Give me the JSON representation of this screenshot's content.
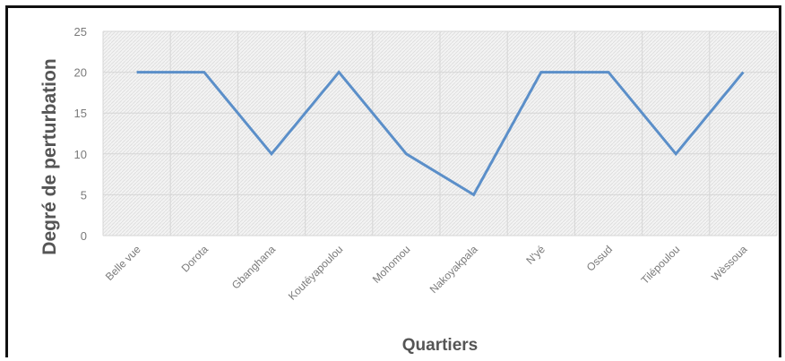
{
  "chart_data": {
    "type": "line",
    "categories": [
      "Belle vue",
      "Dorota",
      "Gbanghana",
      "Koutéyapoulou",
      "Mohomou",
      "Nakoyakpala",
      "N'yé",
      "Ossud",
      "Tilépoulou",
      "Wèssoua"
    ],
    "series": [
      {
        "values": [
          20,
          20,
          10,
          20,
          10,
          5,
          20,
          20,
          10,
          20
        ]
      }
    ],
    "title": "",
    "xlabel": "Quartiers",
    "ylabel": "Degré de perturbation",
    "ylim": [
      0,
      25
    ],
    "yticks": [
      0,
      5,
      10,
      15,
      20,
      25
    ],
    "grid": true,
    "legend": "none",
    "line_color": "#5b8fc9",
    "plot_background": "hatched light gray"
  }
}
